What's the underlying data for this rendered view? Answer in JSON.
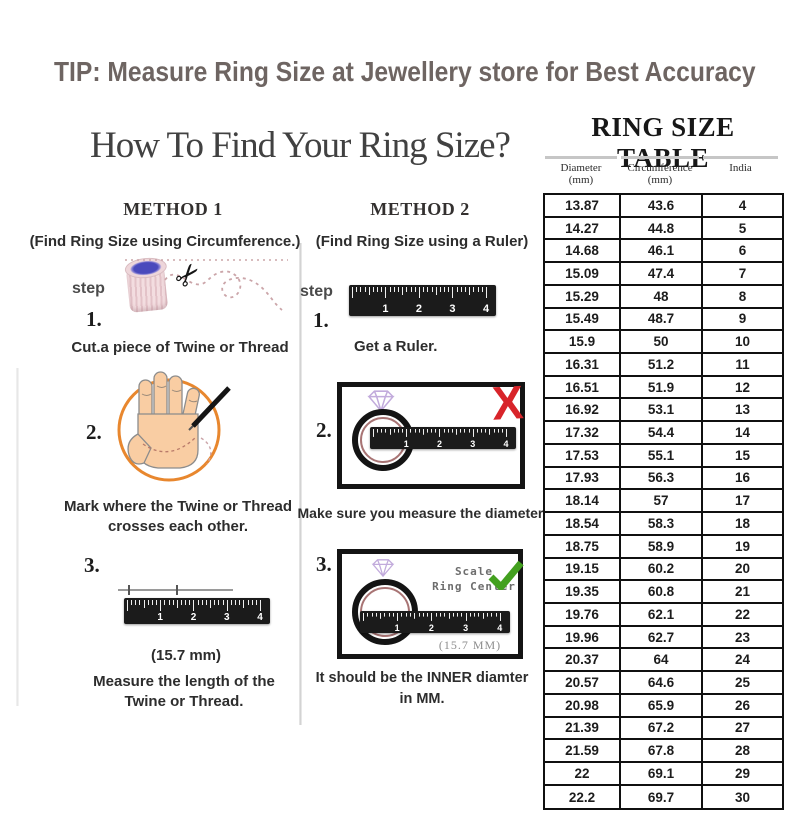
{
  "tip": "TIP: Measure Ring Size at Jewellery store for Best Accuracy",
  "heading": "How To Find Your Ring Size?",
  "method1": {
    "title": "METHOD 1",
    "subtitle": "(Find Ring Size using Circumference.)",
    "step_label": "step",
    "steps": [
      {
        "num": "1.",
        "caption": "Cut.a piece of Twine or Thread"
      },
      {
        "num": "2.",
        "caption": "Mark where the Twine or Thread\ncrosses each other."
      },
      {
        "num": "3.",
        "length_label": "(15.7 mm)",
        "caption": "Measure the length of the\nTwine or Thread."
      }
    ]
  },
  "method2": {
    "title": "METHOD 2",
    "subtitle": "(Find Ring Size using a Ruler)",
    "step_label": "step",
    "steps": [
      {
        "num": "1.",
        "caption": "Get a Ruler."
      },
      {
        "num": "2.",
        "caption": "Make sure you measure the diameter."
      },
      {
        "num": "3.",
        "scale_line1": "Scale",
        "scale_line2": "Ring Center",
        "inner_diameter_label": "(15.7 MM)",
        "caption": "It should be the INNER diamter\nin MM."
      }
    ]
  },
  "ruler": {
    "numbers": [
      "1",
      "2",
      "3",
      "4"
    ]
  },
  "icons": {
    "scissors": "✂",
    "red_x": "X",
    "check": "green-check",
    "diamond": "diamond-outline"
  },
  "table": {
    "title": "RING SIZE TABLE",
    "columns": [
      "Diameter\n(mm)",
      "Circumference\n(mm)",
      "India"
    ],
    "rows": [
      [
        "13.87",
        "43.6",
        "4"
      ],
      [
        "14.27",
        "44.8",
        "5"
      ],
      [
        "14.68",
        "46.1",
        "6"
      ],
      [
        "15.09",
        "47.4",
        "7"
      ],
      [
        "15.29",
        "48",
        "8"
      ],
      [
        "15.49",
        "48.7",
        "9"
      ],
      [
        "15.9",
        "50",
        "10"
      ],
      [
        "16.31",
        "51.2",
        "11"
      ],
      [
        "16.51",
        "51.9",
        "12"
      ],
      [
        "16.92",
        "53.1",
        "13"
      ],
      [
        "17.32",
        "54.4",
        "14"
      ],
      [
        "17.53",
        "55.1",
        "15"
      ],
      [
        "17.93",
        "56.3",
        "16"
      ],
      [
        "18.14",
        "57",
        "17"
      ],
      [
        "18.54",
        "58.3",
        "18"
      ],
      [
        "18.75",
        "58.9",
        "19"
      ],
      [
        "19.15",
        "60.2",
        "20"
      ],
      [
        "19.35",
        "60.8",
        "21"
      ],
      [
        "19.76",
        "62.1",
        "22"
      ],
      [
        "19.96",
        "62.7",
        "23"
      ],
      [
        "20.37",
        "64",
        "24"
      ],
      [
        "20.57",
        "64.6",
        "25"
      ],
      [
        "20.98",
        "65.9",
        "26"
      ],
      [
        "21.39",
        "67.2",
        "27"
      ],
      [
        "21.59",
        "67.8",
        "28"
      ],
      [
        "22",
        "69.1",
        "29"
      ],
      [
        "22.2",
        "69.7",
        "30"
      ]
    ]
  },
  "colors": {
    "tip_text": "#6e6562",
    "accent_red": "#d8242a",
    "check_green": "#43a01f",
    "circle_orange": "#e8872e",
    "hand_fill": "#f9cda3",
    "thread_pink": "#cba5a9",
    "ring_inner": "#a87474",
    "diamond_purple": "#c2abdc",
    "ruler_black": "#1b1b1b"
  }
}
